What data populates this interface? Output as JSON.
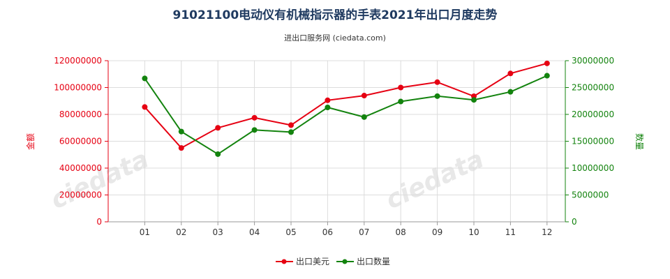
{
  "chart_data": {
    "type": "line",
    "title": "91021100电动仪有机械指示器的手表2021年出口月度走势",
    "subtitle": "进出口服务网 (ciedata.com)",
    "categories": [
      "01",
      "02",
      "03",
      "04",
      "05",
      "06",
      "07",
      "08",
      "09",
      "10",
      "11",
      "12"
    ],
    "y_left": {
      "label": "金额",
      "ylim": [
        0,
        120000000
      ],
      "ticks": [
        "0",
        "20000000",
        "40000000",
        "60000000",
        "80000000",
        "100000000",
        "120000000"
      ]
    },
    "y_right": {
      "label": "数量",
      "ylim": [
        0,
        30000000
      ],
      "ticks": [
        "0",
        "5000000",
        "10000000",
        "15000000",
        "20000000",
        "25000000",
        "30000000"
      ]
    },
    "grid": true,
    "legend_position": "bottom",
    "series": [
      {
        "name": "出口美元",
        "axis": "left",
        "color": "#e60012",
        "values": [
          85500000,
          55000000,
          70000000,
          77500000,
          72000000,
          90500000,
          94000000,
          100000000,
          104000000,
          93500000,
          110500000,
          118000000
        ]
      },
      {
        "name": "出口数量",
        "axis": "right",
        "color": "#13830e",
        "values": [
          26700000,
          16800000,
          12600000,
          17100000,
          16700000,
          21300000,
          19500000,
          22400000,
          23400000,
          22700000,
          24200000,
          27200000
        ]
      }
    ]
  }
}
